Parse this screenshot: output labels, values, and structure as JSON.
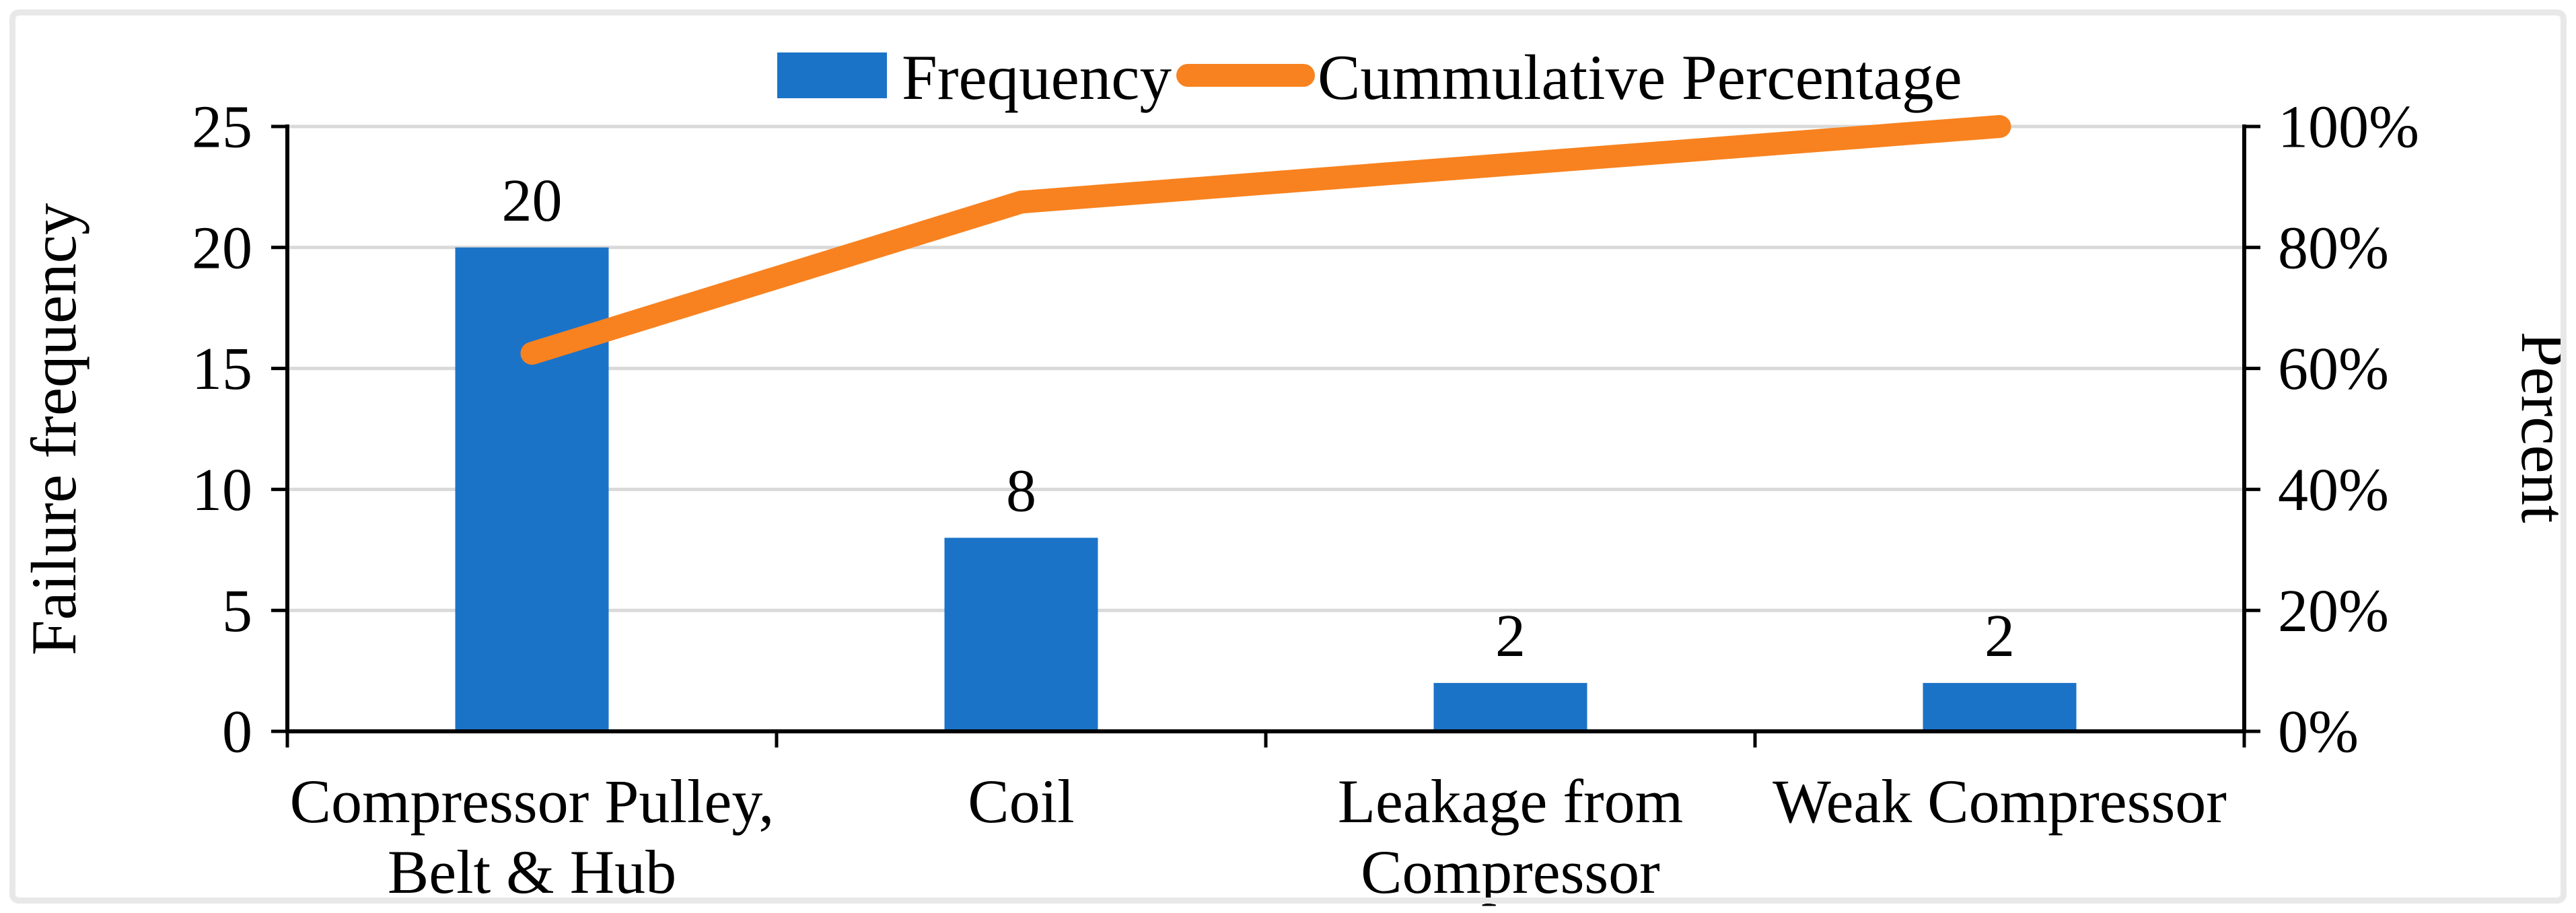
{
  "figure": {
    "background": "#FFFFFF",
    "border_color": "#E8E8E8"
  },
  "legend": {
    "position": "top-center",
    "items": [
      {
        "label": "Frequency",
        "swatch": "bar-swatch",
        "color": "#1B73C8"
      },
      {
        "label": "Cummulative Percentage",
        "swatch": "line-swatch",
        "color": "#F8821F"
      }
    ]
  },
  "chart_data": {
    "type": "bar",
    "subtype": "pareto-combo-bar-line",
    "categories": [
      "Compressor Pulley, Belt & Hub",
      "Coil",
      "Leakage from Compressor",
      "Weak Compressor"
    ],
    "category_label_lines": [
      [
        "Compressor Pulley,",
        "Belt & Hub"
      ],
      [
        "Coil"
      ],
      [
        "Leakage from",
        "Compressor"
      ],
      [
        "Weak Compressor"
      ]
    ],
    "series": [
      {
        "name": "Frequency",
        "type": "bar",
        "axis": "left",
        "color": "#1B73C8",
        "values": [
          20,
          8,
          2,
          2
        ],
        "data_labels": [
          "20",
          "8",
          "2",
          "2"
        ]
      },
      {
        "name": "Cummulative Percentage",
        "type": "line",
        "axis": "right",
        "color": "#F8821F",
        "values": [
          62.5,
          87.5,
          93.75,
          100
        ]
      }
    ],
    "left_axis": {
      "title": "Failure frequency",
      "min": 0,
      "max": 25,
      "step": 5,
      "tick_labels": [
        "0",
        "5",
        "10",
        "15",
        "20",
        "25"
      ]
    },
    "right_axis": {
      "title": "Percent",
      "min": 0,
      "max": 100,
      "step": 20,
      "tick_labels": [
        "0%",
        "20%",
        "40%",
        "60%",
        "80%",
        "100%"
      ]
    },
    "grid": true,
    "legend_position": "top",
    "gridline_color": "#D9D9D9",
    "axis_color": "#000000",
    "text_color": "#000000"
  }
}
